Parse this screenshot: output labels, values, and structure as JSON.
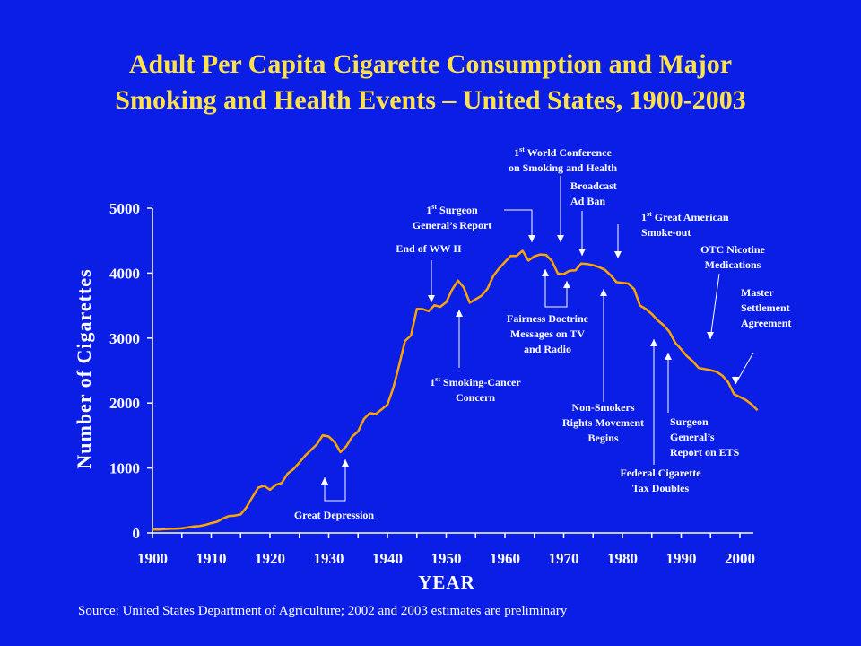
{
  "title": {
    "line1": "Adult Per Capita Cigarette Consumption and Major",
    "line2": "Smoking and Health Events – United States, 1900-2003"
  },
  "source": "Source: United States Department of Agriculture; 2002 and 2003 estimates are preliminary",
  "colors": {
    "background": "#0a1ee6",
    "title": "#ffe14a",
    "line": "#ffa500",
    "text": "#ffffff"
  },
  "chart_data": {
    "type": "line",
    "xlabel": "YEAR",
    "ylabel": "Number of Cigarettes",
    "xlim": [
      1900,
      2003
    ],
    "ylim": [
      0,
      5000
    ],
    "xticks": [
      "1900",
      "1910",
      "1920",
      "1930",
      "1940",
      "1950",
      "1960",
      "1970",
      "1980",
      "1990",
      "2000"
    ],
    "yticks": [
      "0",
      "1000",
      "2000",
      "3000",
      "4000",
      "5000"
    ],
    "grid": false,
    "series": [
      {
        "x": [
          1900,
          1901,
          1902,
          1903,
          1904,
          1905,
          1906,
          1907,
          1908,
          1909,
          1910,
          1911,
          1912,
          1913,
          1914,
          1915,
          1916,
          1917,
          1918,
          1919,
          1920,
          1921,
          1922,
          1923,
          1924,
          1925,
          1926,
          1927,
          1928,
          1929,
          1930,
          1931,
          1932,
          1933,
          1934,
          1935,
          1936,
          1937,
          1938,
          1939,
          1940,
          1941,
          1942,
          1943,
          1944,
          1945,
          1946,
          1947,
          1948,
          1949,
          1950,
          1951,
          1952,
          1953,
          1954,
          1955,
          1956,
          1957,
          1958,
          1959,
          1960,
          1961,
          1962,
          1963,
          1964,
          1965,
          1966,
          1967,
          1968,
          1969,
          1970,
          1971,
          1972,
          1973,
          1974,
          1975,
          1976,
          1977,
          1978,
          1979,
          1980,
          1981,
          1982,
          1983,
          1984,
          1985,
          1986,
          1987,
          1988,
          1989,
          1990,
          1991,
          1992,
          1993,
          1994,
          1995,
          1996,
          1997,
          1998,
          1999,
          2000,
          2001,
          2002,
          2003
        ],
        "y": [
          54,
          53,
          60,
          64,
          66,
          70,
          86,
          99,
          105,
          125,
          151,
          173,
          223,
          260,
          267,
          285,
          395,
          551,
          697,
          727,
          665,
          742,
          770,
          911,
          982,
          1085,
          1191,
          1279,
          1366,
          1504,
          1485,
          1399,
          1245,
          1334,
          1483,
          1564,
          1754,
          1847,
          1830,
          1900,
          1976,
          2236,
          2585,
          2956,
          3039,
          3449,
          3446,
          3416,
          3505,
          3480,
          3552,
          3744,
          3886,
          3778,
          3546,
          3597,
          3650,
          3755,
          3953,
          4073,
          4171,
          4266,
          4265,
          4345,
          4194,
          4258,
          4287,
          4280,
          4186,
          3993,
          3985,
          4037,
          4043,
          4148,
          4141,
          4122,
          4092,
          4051,
          3967,
          3861,
          3851,
          3840,
          3753,
          3502,
          3446,
          3370,
          3274,
          3197,
          3096,
          2926,
          2828,
          2720,
          2641,
          2539,
          2524,
          2505,
          2482,
          2423,
          2320,
          2136,
          2092,
          2049,
          1979,
          1890
        ]
      }
    ],
    "annotations": [
      "End of WW II",
      "1st Surgeon General's Report",
      "1st World Conference on Smoking and Health",
      "Broadcast Ad Ban",
      "1st Great American Smoke-out",
      "OTC Nicotine Medications",
      "Master Settlement Agreement",
      "Fairness Doctrine Messages on TV and Radio",
      "1st Smoking-Cancer Concern",
      "Non-Smokers Rights Movement Begins",
      "Surgeon General's Report on ETS",
      "Federal Cigarette Tax Doubles",
      "Great Depression"
    ]
  },
  "annotations": {
    "wwii": "End of WW II",
    "sg_sup": "st",
    "sg_line1": " Surgeon",
    "sg_line2": "General’s Report",
    "wc_sup": "st",
    "wc_line1": " World Conference",
    "wc_line2": "on Smoking and Health",
    "ad_line1": "Broadcast",
    "ad_line2": "Ad Ban",
    "ga_sup": "st",
    "ga_line1": " Great American",
    "ga_line2": "Smoke-out",
    "otc_line1": "OTC Nicotine",
    "otc_line2": "Medications",
    "msa_line1": "Master",
    "msa_line2": "Settlement",
    "msa_line3": "Agreement",
    "fd_line1": "Fairness Doctrine",
    "fd_line2": "Messages on TV",
    "fd_line3": "and Radio",
    "sc_sup": "st",
    "sc_line1": " Smoking-Cancer",
    "sc_line2": "Concern",
    "ns_line1": "Non-Smokers",
    "ns_line2": "Rights Movement",
    "ns_line3": "Begins",
    "ets_line1": "Surgeon",
    "ets_line2": "General’s",
    "ets_line3": "Report on ETS",
    "tax_line1": "Federal Cigarette",
    "tax_line2": "Tax Doubles",
    "gd": "Great Depression",
    "one": "1"
  }
}
